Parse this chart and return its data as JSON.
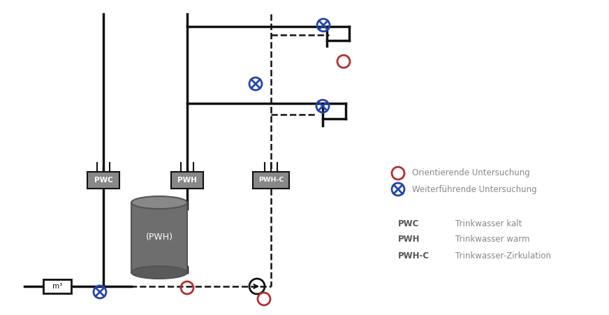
{
  "bg_color": "#ffffff",
  "lc": "#111111",
  "rc": "#b03030",
  "bc": "#2244aa",
  "gc": "#666666",
  "box_fc": "#888888",
  "tank_fc": "#6a6a6a",
  "legend_text": "#888888",
  "legend_bold": "#555555",
  "abbrev_items": [
    {
      "label": "PWC",
      "desc": "Trinkwasser kalt"
    },
    {
      "label": "PWH",
      "desc": "Trinkwasser warm"
    },
    {
      "label": "PWH-C",
      "desc": "Trinkwasser-Zirkulation"
    }
  ],
  "legend_or": "Orientierende Untersuchung",
  "legend_wf": "Weiterführende Untersuchung",
  "xPWC": 148,
  "xPWH": 268,
  "xPWHC": 388,
  "xTank": 228,
  "yTop": 20,
  "yH1": 38,
  "yH1b": 58,
  "yH2": 148,
  "yH2b": 170,
  "yBox": 258,
  "yBoxH": 24,
  "yBottom": 410,
  "xRight1": 500,
  "xRight2": 468,
  "xRight3": 495,
  "xRight4": 462,
  "xLeft": 35,
  "xMeter": 82,
  "xPump": 368,
  "tankW": 80,
  "tankH": 100,
  "tankTopY": 290,
  "lw_pipe": 2.5,
  "lw_dash": 1.8,
  "r_samp": 9
}
